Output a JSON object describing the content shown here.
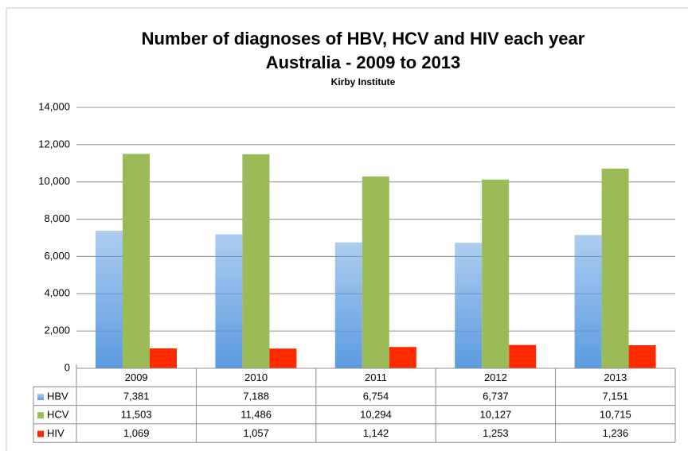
{
  "chart_data": {
    "type": "bar",
    "title": [
      "Number of diagnoses of HBV, HCV and HIV each year",
      "Australia - 2009 to 2013"
    ],
    "subtitle": "Kirby Institute",
    "categories": [
      "2009",
      "2010",
      "2011",
      "2012",
      "2013"
    ],
    "series": [
      {
        "name": "HBV",
        "color": "#5b9be0",
        "gradient": true,
        "values": [
          7381,
          7188,
          6754,
          6737,
          7151
        ],
        "value_labels": [
          "7,381",
          "7,188",
          "6,754",
          "6,737",
          "7,151"
        ]
      },
      {
        "name": "HCV",
        "color": "#9bbb59",
        "values": [
          11503,
          11486,
          10294,
          10127,
          10715
        ],
        "value_labels": [
          "11,503",
          "11,486",
          "10,294",
          "10,127",
          "10,715"
        ]
      },
      {
        "name": "HIV",
        "color": "#ff2a00",
        "values": [
          1069,
          1057,
          1142,
          1253,
          1236
        ],
        "value_labels": [
          "1,069",
          "1,057",
          "1,142",
          "1,253",
          "1,236"
        ]
      }
    ],
    "ylim": [
      0,
      14000
    ],
    "yticks": [
      0,
      {
        "value": 2000,
        "label": "2,000"
      },
      {
        "value": 4000,
        "label": "4,000"
      },
      {
        "value": 6000,
        "label": "6,000"
      },
      {
        "value": 8000,
        "label": "8,000"
      },
      {
        "value": 10000,
        "label": "10,000"
      },
      {
        "value": 12000,
        "label": "12,000"
      },
      {
        "value": 14000,
        "label": "14,000"
      }
    ],
    "grid": true
  }
}
